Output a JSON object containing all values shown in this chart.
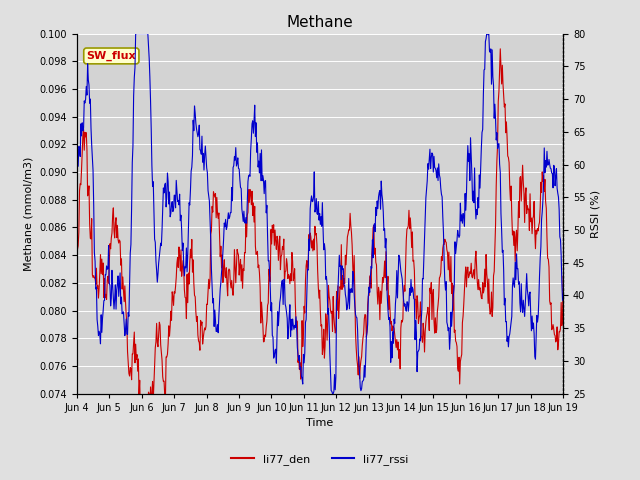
{
  "title": "Methane",
  "ylabel_left": "Methane (mmol/m3)",
  "ylabel_right": "RSSI (%)",
  "xlabel": "Time",
  "ylim_left": [
    0.074,
    0.1
  ],
  "ylim_right": [
    25,
    80
  ],
  "yticks_left": [
    0.074,
    0.076,
    0.078,
    0.08,
    0.082,
    0.084,
    0.086,
    0.088,
    0.09,
    0.092,
    0.094,
    0.096,
    0.098,
    0.1
  ],
  "yticks_right": [
    25,
    30,
    35,
    40,
    45,
    50,
    55,
    60,
    65,
    70,
    75,
    80
  ],
  "xtick_labels": [
    "Jun 4",
    "Jun 5",
    "Jun 6",
    "Jun 7",
    "Jun 8",
    "Jun 9",
    "Jun 10",
    "Jun 11",
    "Jun 12",
    "Jun 13",
    "Jun 14",
    "Jun 15",
    "Jun 16",
    "Jun 17",
    "Jun 18",
    "Jun 19"
  ],
  "color_den": "#cc0000",
  "color_rssi": "#0000cc",
  "bg_color": "#e0e0e0",
  "plot_bg_color": "#d3d3d3",
  "legend_label_den": "li77_den",
  "legend_label_rssi": "li77_rssi",
  "box_label": "SW_flux",
  "box_facecolor": "#ffffcc",
  "box_edgecolor": "#999900",
  "box_textcolor": "#cc0000",
  "title_fontsize": 11,
  "axis_fontsize": 8,
  "tick_fontsize": 7,
  "legend_fontsize": 8
}
